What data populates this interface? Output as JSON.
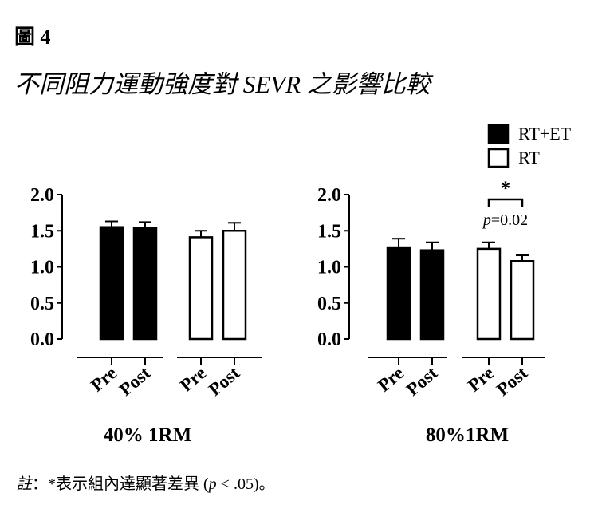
{
  "figure_label": "圖 4",
  "title": "不同阻力運動強度對 SEVR 之影響比較",
  "note": {
    "prefix": "註",
    "text": "：*表示組內達顯著差異 (",
    "p": "p",
    "suffix": " < .05)。"
  },
  "legend": [
    {
      "label": "RT+ET",
      "fill": "#000000"
    },
    {
      "label": "RT",
      "fill": "#ffffff"
    }
  ],
  "colors": {
    "rt_et": "#000000",
    "rt": "#ffffff",
    "stroke": "#000000"
  },
  "chart_data": [
    {
      "type": "bar",
      "group_label": "40%  1RM",
      "categories": [
        "Pre",
        "Post",
        "Pre",
        "Post"
      ],
      "series": [
        {
          "name": "RT+ET",
          "values": [
            1.55,
            1.54,
            null,
            null
          ],
          "errors": [
            0.08,
            0.08,
            null,
            null
          ]
        },
        {
          "name": "RT",
          "values": [
            null,
            null,
            1.41,
            1.5
          ],
          "errors": [
            null,
            null,
            0.09,
            0.11
          ]
        }
      ],
      "yticks": [
        "0.0",
        "0.5",
        "1.0",
        "1.5",
        "2.0"
      ],
      "ylim": [
        0,
        2.0
      ],
      "annotation": null
    },
    {
      "type": "bar",
      "group_label": "80%1RM",
      "categories": [
        "Pre",
        "Post",
        "Pre",
        "Post"
      ],
      "series": [
        {
          "name": "RT+ET",
          "values": [
            1.27,
            1.23,
            null,
            null
          ],
          "errors": [
            0.12,
            0.11,
            null,
            null
          ]
        },
        {
          "name": "RT",
          "values": [
            null,
            null,
            1.25,
            1.08
          ],
          "errors": [
            null,
            null,
            0.09,
            0.08
          ]
        }
      ],
      "yticks": [
        "0.0",
        "0.5",
        "1.0",
        "1.5",
        "2.0"
      ],
      "ylim": [
        0,
        2.0
      ],
      "annotation": {
        "star": "*",
        "p_label": "p",
        "p_value": "=0.02",
        "between": [
          2,
          3
        ]
      }
    }
  ]
}
